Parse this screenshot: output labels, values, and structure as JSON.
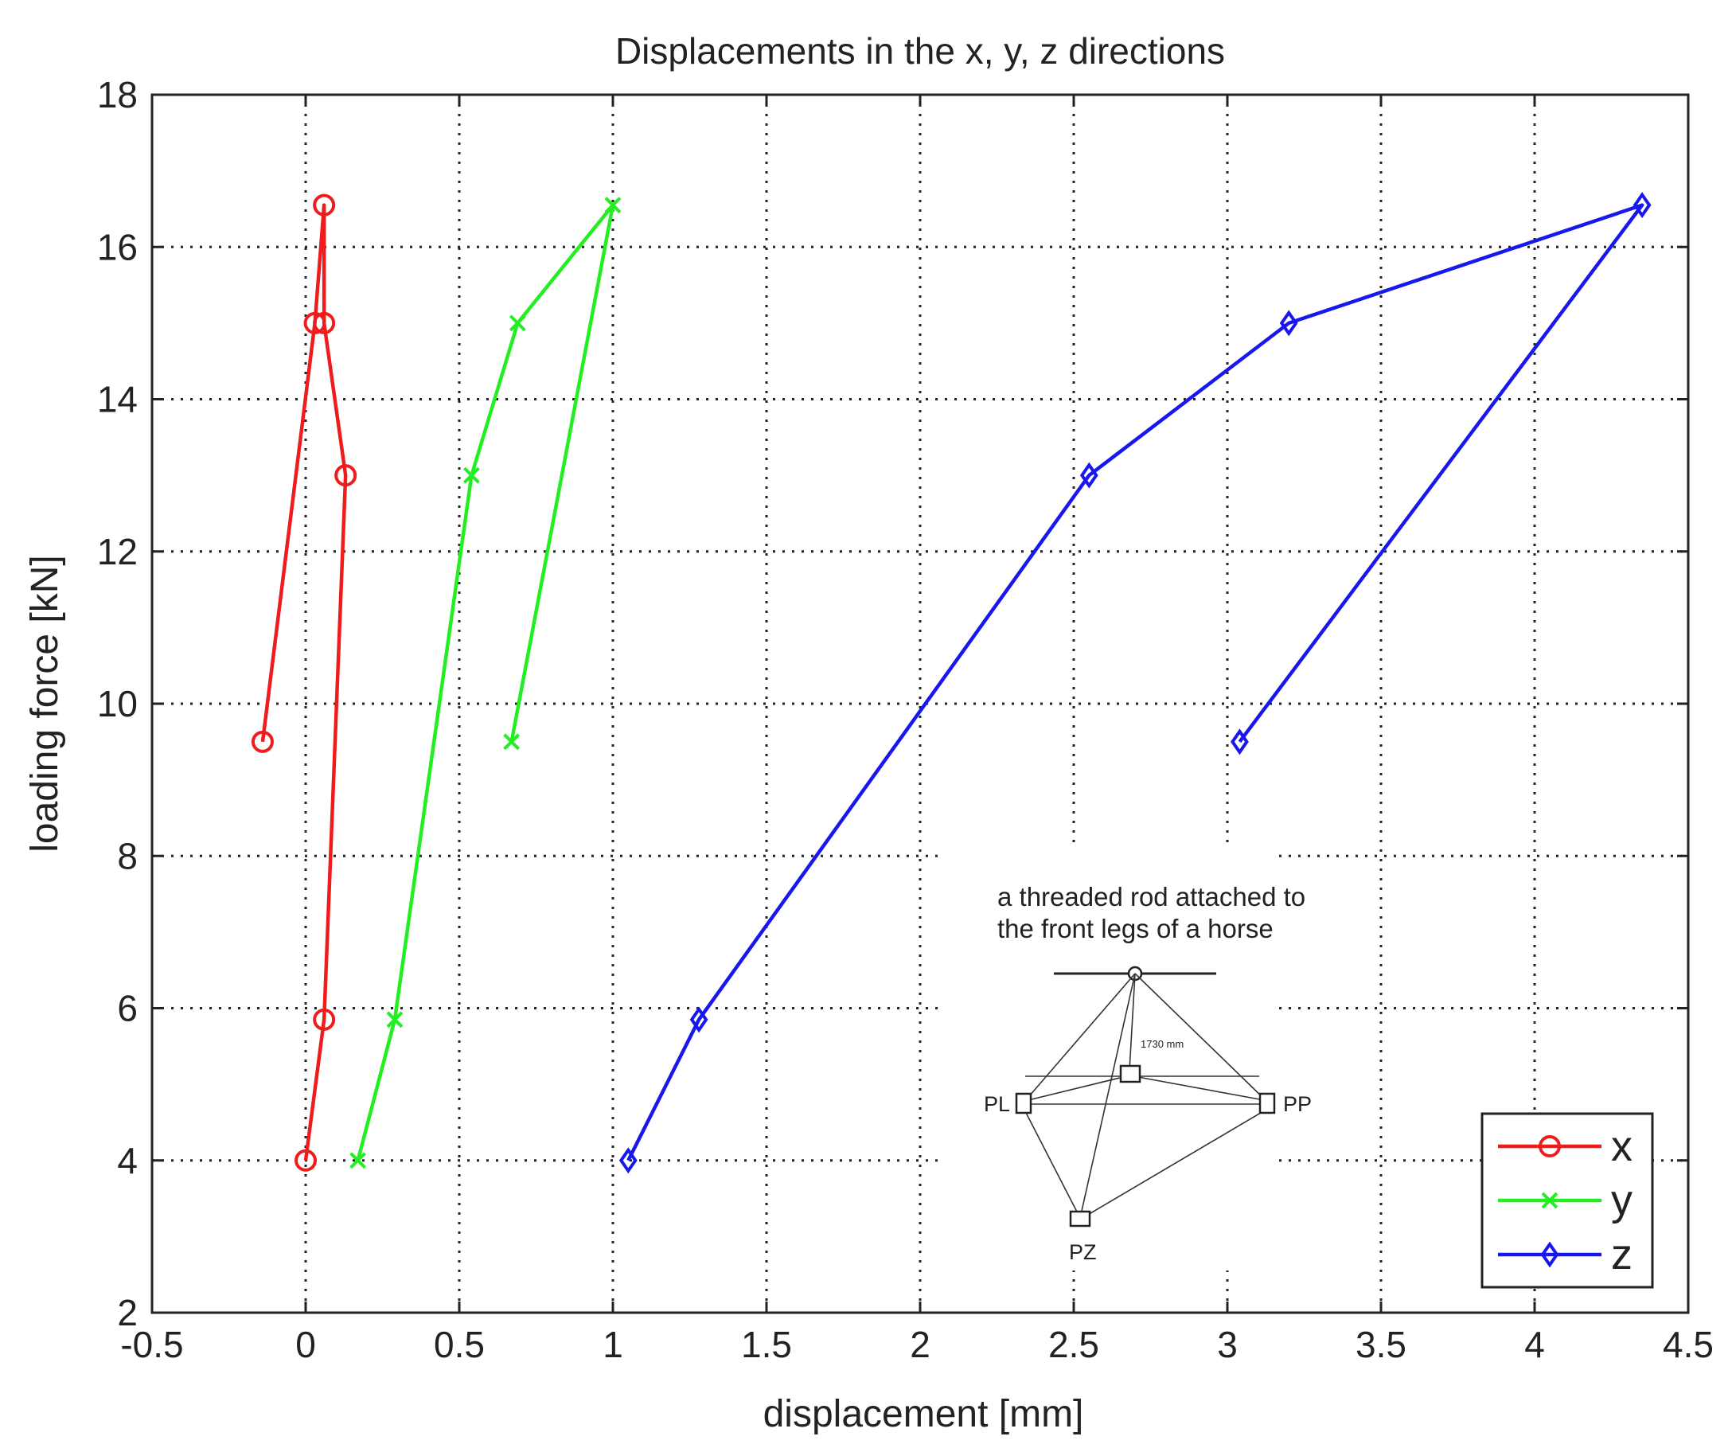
{
  "chart_data": {
    "type": "line",
    "title": "Displacements in the x, y, z directions",
    "xlabel": "displacement [mm]",
    "ylabel": "loading force [kN]",
    "xlim": [
      -0.5,
      4.5
    ],
    "ylim": [
      2,
      18
    ],
    "xticks": [
      -0.5,
      0,
      0.5,
      1,
      1.5,
      2,
      2.5,
      3,
      3.5,
      4,
      4.5
    ],
    "yticks": [
      2,
      4,
      6,
      8,
      10,
      12,
      14,
      16,
      18
    ],
    "xtick_labels": [
      "-0.5",
      "0",
      "0.5",
      "1",
      "1.5",
      "2",
      "2.5",
      "3",
      "3.5",
      "4",
      "4.5"
    ],
    "ytick_labels": [
      "2",
      "4",
      "6",
      "8",
      "10",
      "12",
      "14",
      "16",
      "18"
    ],
    "grid": true,
    "legend_position": "bottom-right",
    "series": [
      {
        "name": "x",
        "color": "#ee1c1c",
        "marker": "circle",
        "points": [
          [
            0,
            4
          ],
          [
            0.06,
            5.85
          ],
          [
            0.13,
            13
          ],
          [
            0.06,
            15
          ],
          [
            0.06,
            16.55
          ],
          [
            0.03,
            15
          ],
          [
            -0.14,
            9.5
          ]
        ]
      },
      {
        "name": "y",
        "color": "#22ee22",
        "marker": "x",
        "points": [
          [
            0.17,
            4
          ],
          [
            0.29,
            5.85
          ],
          [
            0.54,
            13
          ],
          [
            0.69,
            15
          ],
          [
            1.0,
            16.55
          ],
          [
            0.67,
            9.5
          ]
        ]
      },
      {
        "name": "z",
        "color": "#1818ee",
        "marker": "diamond",
        "points": [
          [
            1.05,
            4
          ],
          [
            1.28,
            5.85
          ],
          [
            2.55,
            13
          ],
          [
            3.2,
            15
          ],
          [
            4.35,
            16.55
          ],
          [
            3.04,
            9.5
          ]
        ]
      }
    ],
    "annotation": {
      "caption_line1": "a threaded rod attached to",
      "caption_line2": "the front legs of a horse",
      "label_left": "PL",
      "label_right": "PP",
      "label_bottom": "PZ",
      "dimension": "1730 mm"
    }
  }
}
